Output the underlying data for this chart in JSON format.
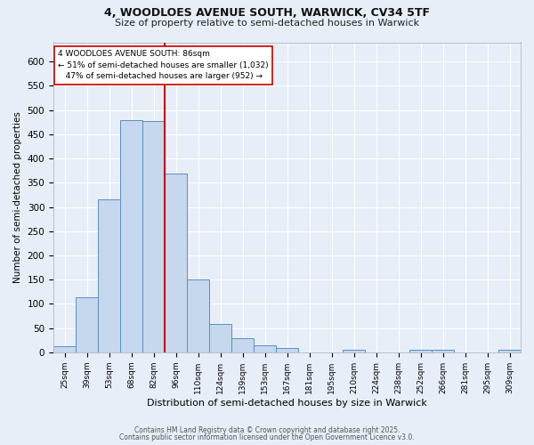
{
  "title_line1": "4, WOODLOES AVENUE SOUTH, WARWICK, CV34 5TF",
  "title_line2": "Size of property relative to semi-detached houses in Warwick",
  "xlabel": "Distribution of semi-detached houses by size in Warwick",
  "ylabel": "Number of semi-detached properties",
  "bin_labels": [
    "25sqm",
    "39sqm",
    "53sqm",
    "68sqm",
    "82sqm",
    "96sqm",
    "110sqm",
    "124sqm",
    "139sqm",
    "153sqm",
    "167sqm",
    "181sqm",
    "195sqm",
    "210sqm",
    "224sqm",
    "238sqm",
    "252sqm",
    "266sqm",
    "281sqm",
    "295sqm",
    "309sqm"
  ],
  "bar_heights": [
    13,
    113,
    316,
    480,
    478,
    369,
    150,
    58,
    29,
    15,
    9,
    0,
    0,
    5,
    0,
    0,
    6,
    5,
    0,
    0,
    5
  ],
  "bar_color": "#c5d8ed",
  "bar_edge_color": "#5b8ec4",
  "vline_color": "#cc0000",
  "annotation_text": "4 WOODLOES AVENUE SOUTH: 86sqm\n← 51% of semi-detached houses are smaller (1,032)\n   47% of semi-detached houses are larger (952) →",
  "annotation_box_color": "#ffffff",
  "annotation_box_edge": "#cc0000",
  "ylim": [
    0,
    640
  ],
  "yticks": [
    0,
    50,
    100,
    150,
    200,
    250,
    300,
    350,
    400,
    450,
    500,
    550,
    600
  ],
  "footer_line1": "Contains HM Land Registry data © Crown copyright and database right 2025.",
  "footer_line2": "Contains public sector information licensed under the Open Government Licence v3.0.",
  "background_color": "#e8eef7",
  "plot_bg_color": "#e8eef7",
  "grid_color": "#ffffff"
}
